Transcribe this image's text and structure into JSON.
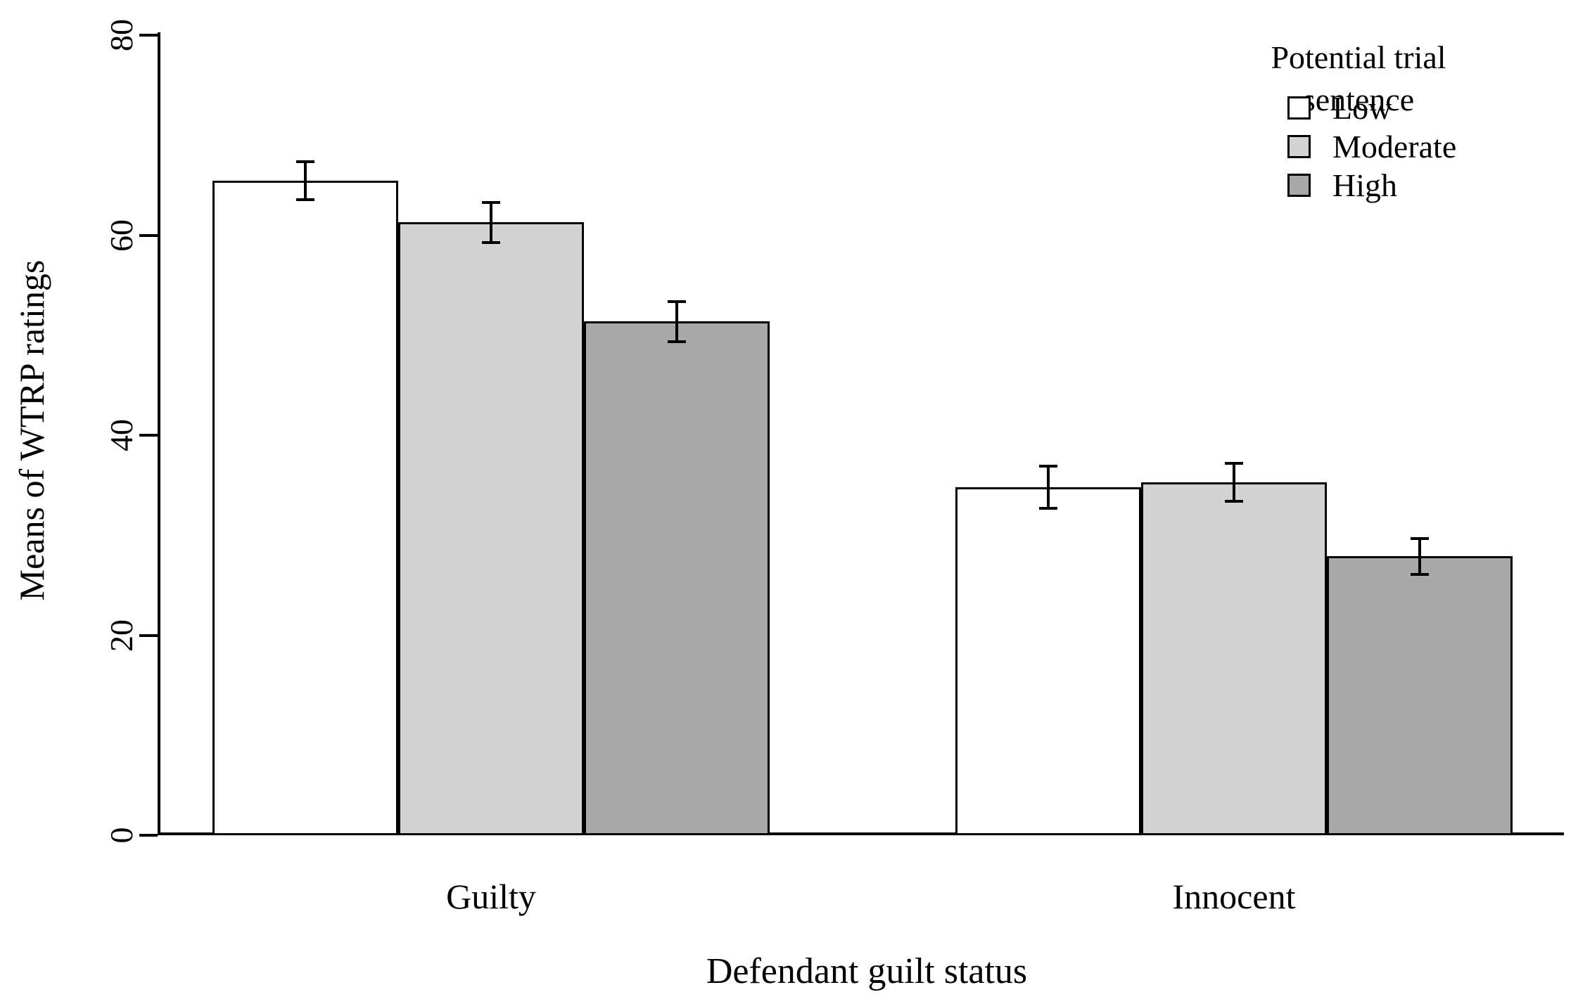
{
  "chart_data": {
    "type": "bar",
    "title": "",
    "categories": [
      "Guilty",
      "Innocent"
    ],
    "series": [
      {
        "name": "Low",
        "color": "#ffffff",
        "values": [
          65.5,
          34.8
        ],
        "se": [
          1.9,
          2.1
        ]
      },
      {
        "name": "Moderate",
        "color": "#d3d3d3",
        "values": [
          61.3,
          35.3
        ],
        "se": [
          2.0,
          1.9
        ]
      },
      {
        "name": "High",
        "color": "#a9a9a9",
        "values": [
          51.4,
          27.9
        ],
        "se": [
          2.0,
          1.8
        ]
      }
    ],
    "xlabel": "Defendant guilt status",
    "ylabel": "Means of WTRP ratings",
    "ylim": [
      0,
      80
    ],
    "yticks": [
      0,
      20,
      40,
      60,
      80
    ],
    "ytick_labels": [
      "0",
      "20",
      "40",
      "60",
      "80"
    ],
    "grid": false,
    "error_bars": true,
    "bar_outline_color": "#000000",
    "axis_color": "#000000",
    "legend": {
      "title": "Potential trial sentence",
      "position": "top-right",
      "items": [
        "Low",
        "Moderate",
        "High"
      ]
    }
  }
}
